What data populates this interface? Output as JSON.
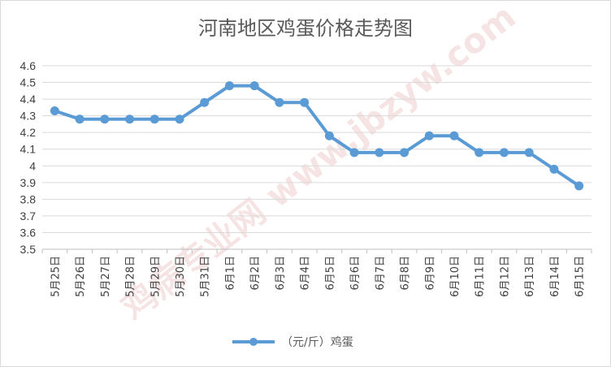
{
  "chart_data": {
    "type": "line",
    "title": "河南地区鸡蛋价格走势图",
    "categories": [
      "5月25日",
      "5月26日",
      "5月27日",
      "5月28日",
      "5月29日",
      "5月30日",
      "5月31日",
      "6月1日",
      "6月2日",
      "6月3日",
      "6月4日",
      "6月5日",
      "6月6日",
      "6月7日",
      "6月8日",
      "6月9日",
      "6月10日",
      "6月11日",
      "6月12日",
      "6月13日",
      "6月14日",
      "6月15日"
    ],
    "series": [
      {
        "name": "（元/斤）鸡蛋",
        "values": [
          4.33,
          4.28,
          4.28,
          4.28,
          4.28,
          4.28,
          4.38,
          4.48,
          4.48,
          4.38,
          4.38,
          4.18,
          4.08,
          4.08,
          4.08,
          4.18,
          4.18,
          4.08,
          4.08,
          4.08,
          3.98,
          3.88
        ]
      }
    ],
    "ylim": [
      3.5,
      4.6
    ],
    "yticks": [
      "3.5",
      "3.6",
      "3.7",
      "3.8",
      "3.9",
      "4",
      "4.1",
      "4.2",
      "4.3",
      "4.4",
      "4.5",
      "4.6"
    ],
    "xlabel": "",
    "ylabel": "",
    "grid": true,
    "legend_position": "bottom",
    "colors": {
      "line": "#5b9bd5",
      "grid": "#d9d9d9",
      "axis": "#bfbfbf"
    },
    "watermark": "鸡病专业网 www.jbzyw.com"
  }
}
